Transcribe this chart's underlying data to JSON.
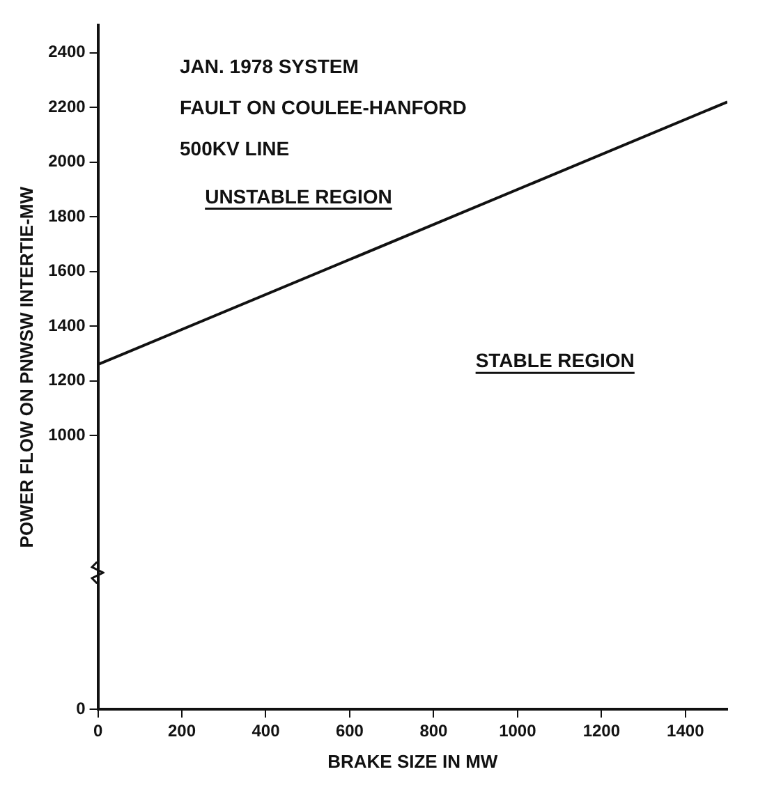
{
  "chart_data": {
    "type": "line",
    "xlabel": "BRAKE SIZE IN MW",
    "ylabel": "POWER FLOW ON PNWSW INTERTIE-MW",
    "series": [
      {
        "x": [
          0,
          1500
        ],
        "values": [
          1260,
          2220
        ],
        "color": "#111111"
      }
    ],
    "xlim": [
      0,
      1500
    ],
    "xticks": [
      0,
      200,
      400,
      600,
      800,
      1000,
      1200,
      1400
    ],
    "ylim": [
      0,
      2500
    ],
    "yticks": [
      0,
      1000,
      1200,
      1400,
      1600,
      1800,
      2000,
      2200,
      2400
    ],
    "annotations": [
      "JAN. 1978 SYSTEM",
      "FAULT ON COULEE-HANFORD",
      "500KV LINE",
      "UNSTABLE REGION",
      "STABLE REGION"
    ],
    "grid": false,
    "legend": false,
    "marker": "none",
    "line_style": "solid"
  }
}
